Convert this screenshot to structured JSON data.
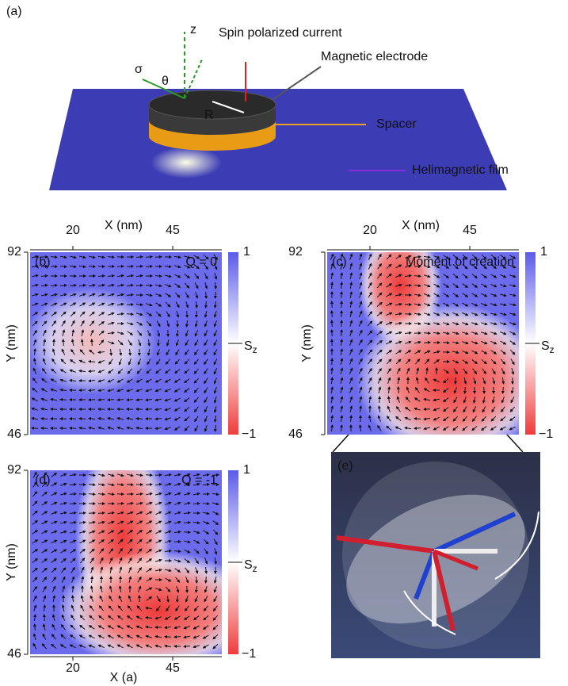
{
  "panel_a": {
    "label": "(a)",
    "z_axis": "z",
    "theta": "θ",
    "sigma": "σ",
    "current": "Spin polarized current",
    "electrode": "Magnetic electrode",
    "radius": "R",
    "spacer": "Spacer",
    "film": "Helimagnetic film"
  },
  "panels": [
    {
      "label": "(b)",
      "note": "Q = 0",
      "x_title": "X (nm)",
      "x_ticks": [
        20,
        45
      ],
      "y_title": "Y (nm)",
      "y_ticks": [
        92,
        46
      ],
      "colorbar": {
        "ticks": [
          "1",
          "−1"
        ],
        "symbol": "S",
        "subscript": "z"
      }
    },
    {
      "label": "(c)",
      "note": "Moment of creation",
      "x_title": "X (nm)",
      "x_ticks": [
        20,
        45
      ],
      "y_title": "Y (nm)",
      "y_ticks": [
        92,
        46
      ],
      "colorbar": {
        "ticks": [
          "1",
          "−1"
        ],
        "symbol": "S",
        "subscript": "z"
      }
    },
    {
      "label": "(d)",
      "note": "Q = -1",
      "x_title": "X (a)",
      "x_ticks": [
        20,
        45
      ],
      "y_title": "Y (nm)",
      "y_ticks": [
        92,
        46
      ],
      "colorbar": {
        "ticks": [
          "1",
          "−1"
        ],
        "symbol": "S",
        "subscript": "z"
      }
    }
  ],
  "panel_e": {
    "label": "(e)"
  }
}
